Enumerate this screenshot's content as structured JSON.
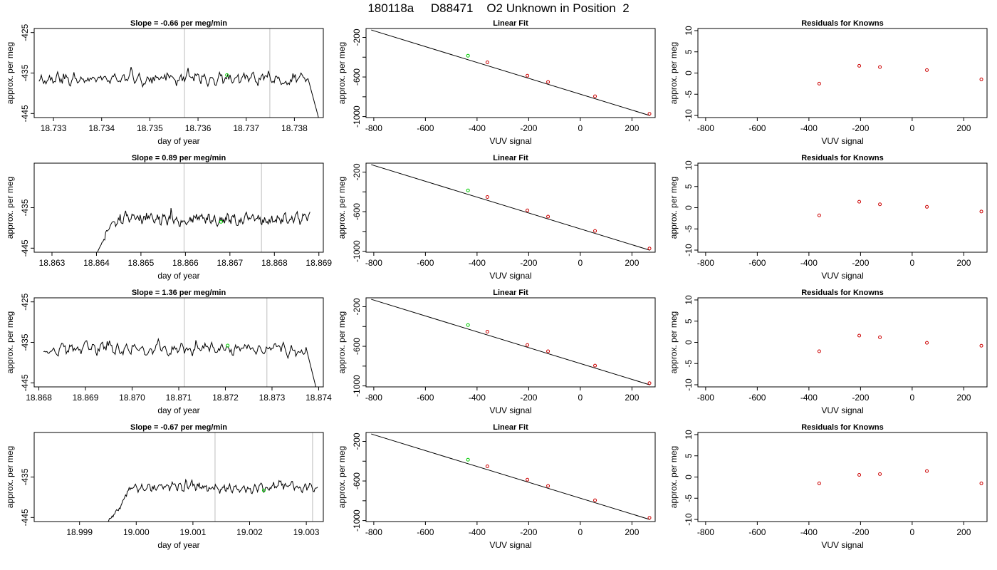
{
  "page_title": "180118a     D88471    O2 Unknown in Position  2",
  "colors": {
    "trace": "#000000",
    "grid_marker": "#c8c8c8",
    "known_point": "#cc0000",
    "unknown_point": "#00cc00",
    "fit_line": "#000000"
  },
  "chart_data": [
    {
      "type": "line",
      "row": 0,
      "col": 0,
      "title": "Slope =  -0.66  per meg/min",
      "xlabel": "day of year",
      "ylabel": "approx. per meg",
      "xlim": [
        18.7326,
        18.7386
      ],
      "ylim": [
        -446,
        -424
      ],
      "xticks": [
        18.733,
        18.734,
        18.735,
        18.736,
        18.737,
        18.738
      ],
      "xtick_labels": [
        "18.733",
        "18.734",
        "18.735",
        "18.736",
        "18.737",
        "18.738"
      ],
      "yticks": [
        -445,
        -435,
        -425
      ],
      "ytick_labels": [
        "-445",
        "-435",
        "-425"
      ],
      "x_range": [
        18.7327,
        18.7385
      ],
      "vlines": [
        18.73572,
        18.73749
      ],
      "marker_point": [
        18.7366,
        -435.5
      ],
      "trace": {
        "seed": 11,
        "start_frac": 0.0,
        "mean": -436.5,
        "amp": 2.4,
        "rise": 0,
        "tail_drop": [
          -437,
          -446
        ],
        "head_start": -436
      }
    },
    {
      "type": "line",
      "row": 0,
      "col": 1,
      "title": "Linear Fit",
      "xlabel": "VUV signal",
      "ylabel": "approx. per meg",
      "xlim": [
        -830,
        290
      ],
      "ylim": [
        -1010,
        -110
      ],
      "xticks": [
        -800,
        -600,
        -400,
        -200,
        0,
        200
      ],
      "xtick_labels": [
        "-800",
        "-600",
        "-400",
        "-200",
        "0",
        "200"
      ],
      "yticks": [
        -1000,
        -800,
        -600,
        -400,
        -200
      ],
      "ytick_labels": [
        "-1000",
        "",
        "-600",
        "",
        "-200"
      ],
      "fit_line": {
        "x": [
          -810,
          270
        ],
        "y": [
          -125,
          -990
        ]
      },
      "known_points": {
        "x": [
          -360,
          -205,
          -125,
          57,
          268
        ],
        "y": [
          -452,
          -587,
          -650,
          -795,
          -972
        ]
      },
      "unknown_point": {
        "x": -435,
        "y": -385
      }
    },
    {
      "type": "scatter",
      "row": 0,
      "col": 2,
      "title": "Residuals for Knowns",
      "xlabel": "VUV signal",
      "ylabel": "approx. per meg",
      "xlim": [
        -830,
        290
      ],
      "ylim": [
        -10.5,
        10.5
      ],
      "xticks": [
        -800,
        -600,
        -400,
        -200,
        0,
        200
      ],
      "xtick_labels": [
        "-800",
        "-600",
        "-400",
        "-200",
        "0",
        "200"
      ],
      "yticks": [
        -10,
        -5,
        0,
        5,
        10
      ],
      "ytick_labels": [
        "-10",
        "-5",
        "0",
        "5",
        "10"
      ],
      "points": {
        "x": [
          -360,
          -205,
          -125,
          57,
          268
        ],
        "y": [
          -2.5,
          1.7,
          1.4,
          0.7,
          -1.5
        ]
      }
    },
    {
      "type": "line",
      "row": 1,
      "col": 0,
      "title": "Slope =  0.89  per meg/min",
      "xlabel": "day of year",
      "ylabel": "approx. per meg",
      "xlim": [
        18.8626,
        18.8691
      ],
      "ylim": [
        -446,
        -424
      ],
      "xticks": [
        18.863,
        18.864,
        18.865,
        18.866,
        18.867,
        18.868,
        18.869
      ],
      "xtick_labels": [
        "18.863",
        "18.864",
        "18.865",
        "18.866",
        "18.867",
        "18.868",
        "18.869"
      ],
      "yticks": [
        -445,
        -435
      ],
      "ytick_labels": [
        "-445",
        "-435"
      ],
      "x_range": [
        18.8639,
        18.8688
      ],
      "vlines": [
        18.86597,
        18.86771
      ],
      "marker_point": [
        18.8668,
        -438.5
      ],
      "trace": {
        "seed": 23,
        "start_frac": 0.0,
        "mean": -437.8,
        "amp": 2.2,
        "rise": 0,
        "tail_drop": null,
        "head_start": -447
      }
    },
    {
      "type": "line",
      "row": 1,
      "col": 1,
      "title": "Linear Fit",
      "xlabel": "VUV signal",
      "ylabel": "approx. per meg",
      "xlim": [
        -830,
        290
      ],
      "ylim": [
        -1010,
        -110
      ],
      "xticks": [
        -800,
        -600,
        -400,
        -200,
        0,
        200
      ],
      "xtick_labels": [
        "-800",
        "-600",
        "-400",
        "-200",
        "0",
        "200"
      ],
      "yticks": [
        -1000,
        -800,
        -600,
        -400,
        -200
      ],
      "ytick_labels": [
        "-1000",
        "",
        "-600",
        "",
        "-200"
      ],
      "fit_line": {
        "x": [
          -810,
          270
        ],
        "y": [
          -125,
          -990
        ]
      },
      "known_points": {
        "x": [
          -360,
          -205,
          -125,
          57,
          268
        ],
        "y": [
          -452,
          -587,
          -650,
          -795,
          -972
        ]
      },
      "unknown_point": {
        "x": -435,
        "y": -385
      }
    },
    {
      "type": "scatter",
      "row": 1,
      "col": 2,
      "title": "Residuals for Knowns",
      "xlabel": "VUV signal",
      "ylabel": "approx. per meg",
      "xlim": [
        -830,
        290
      ],
      "ylim": [
        -10.5,
        10.5
      ],
      "xticks": [
        -800,
        -600,
        -400,
        -200,
        0,
        200
      ],
      "xtick_labels": [
        "-800",
        "-600",
        "-400",
        "-200",
        "0",
        "200"
      ],
      "yticks": [
        -10,
        -5,
        0,
        5,
        10
      ],
      "ytick_labels": [
        "-10",
        "-5",
        "0",
        "5",
        "10"
      ],
      "points": {
        "x": [
          -360,
          -205,
          -125,
          57,
          268
        ],
        "y": [
          -1.8,
          1.4,
          0.8,
          0.2,
          -0.9
        ]
      }
    },
    {
      "type": "line",
      "row": 2,
      "col": 0,
      "title": "Slope =  1.36  per meg/min",
      "xlabel": "day of year",
      "ylabel": "approx. per meg",
      "xlim": [
        18.8679,
        18.8741
      ],
      "ylim": [
        -446,
        -424
      ],
      "xticks": [
        18.868,
        18.869,
        18.87,
        18.871,
        18.872,
        18.873,
        18.874
      ],
      "xtick_labels": [
        "18.868",
        "18.869",
        "18.870",
        "18.871",
        "18.872",
        "18.873",
        "18.874"
      ],
      "yticks": [
        -445,
        -435,
        -425
      ],
      "ytick_labels": [
        "-445",
        "-435",
        "-425"
      ],
      "x_range": [
        18.8681,
        18.87395
      ],
      "vlines": [
        18.87112,
        18.87289
      ],
      "marker_point": [
        18.87205,
        -435.8
      ],
      "trace": {
        "seed": 37,
        "start_frac": 0.0,
        "mean": -436.8,
        "amp": 2.3,
        "rise": 0,
        "tail_drop": [
          -437,
          -446.5
        ],
        "head_start": -437
      }
    },
    {
      "type": "line",
      "row": 2,
      "col": 1,
      "title": "Linear Fit",
      "xlabel": "VUV signal",
      "ylabel": "approx. per meg",
      "xlim": [
        -830,
        290
      ],
      "ylim": [
        -1010,
        -110
      ],
      "xticks": [
        -800,
        -600,
        -400,
        -200,
        0,
        200
      ],
      "xtick_labels": [
        "-800",
        "-600",
        "-400",
        "-200",
        "0",
        "200"
      ],
      "yticks": [
        -1000,
        -800,
        -600,
        -400,
        -200
      ],
      "ytick_labels": [
        "-1000",
        "",
        "-600",
        "",
        "-200"
      ],
      "fit_line": {
        "x": [
          -810,
          270
        ],
        "y": [
          -125,
          -990
        ]
      },
      "known_points": {
        "x": [
          -360,
          -205,
          -125,
          57,
          268
        ],
        "y": [
          -452,
          -587,
          -650,
          -795,
          -972
        ]
      },
      "unknown_point": {
        "x": -435,
        "y": -385
      }
    },
    {
      "type": "scatter",
      "row": 2,
      "col": 2,
      "title": "Residuals for Knowns",
      "xlabel": "VUV signal",
      "ylabel": "approx. per meg",
      "xlim": [
        -830,
        290
      ],
      "ylim": [
        -10.5,
        10.5
      ],
      "xticks": [
        -800,
        -600,
        -400,
        -200,
        0,
        200
      ],
      "xtick_labels": [
        "-800",
        "-600",
        "-400",
        "-200",
        "0",
        "200"
      ],
      "yticks": [
        -10,
        -5,
        0,
        5,
        10
      ],
      "ytick_labels": [
        "-10",
        "-5",
        "0",
        "5",
        "10"
      ],
      "points": {
        "x": [
          -360,
          -205,
          -125,
          57,
          268
        ],
        "y": [
          -2.1,
          1.6,
          1.2,
          -0.1,
          -0.8
        ]
      }
    },
    {
      "type": "line",
      "row": 3,
      "col": 0,
      "title": "Slope =  -0.67  per meg/min",
      "xlabel": "day of year",
      "ylabel": "approx. per meg",
      "xlim": [
        18.9982,
        19.0033
      ],
      "ylim": [
        -446,
        -424
      ],
      "xticks": [
        18.999,
        19.0,
        19.001,
        19.002,
        19.003
      ],
      "xtick_labels": [
        "18.999",
        "19.000",
        "19.001",
        "19.002",
        "19.003"
      ],
      "yticks": [
        -445,
        -435
      ],
      "ytick_labels": [
        "-445",
        "-435"
      ],
      "x_range": [
        18.9994,
        19.0032
      ],
      "vlines": [
        19.00139,
        19.00311
      ],
      "marker_point": [
        19.00225,
        -438.3
      ],
      "trace": {
        "seed": 53,
        "start_frac": 0.0,
        "mean": -437.5,
        "amp": 1.8,
        "rise": 1,
        "tail_drop": null,
        "head_start": -447
      }
    },
    {
      "type": "line",
      "row": 3,
      "col": 1,
      "title": "Linear Fit",
      "xlabel": "VUV signal",
      "ylabel": "approx. per meg",
      "xlim": [
        -830,
        290
      ],
      "ylim": [
        -1010,
        -110
      ],
      "xticks": [
        -800,
        -600,
        -400,
        -200,
        0,
        200
      ],
      "xtick_labels": [
        "-800",
        "-600",
        "-400",
        "-200",
        "0",
        "200"
      ],
      "yticks": [
        -1000,
        -800,
        -600,
        -400,
        -200
      ],
      "ytick_labels": [
        "-1000",
        "",
        "-600",
        "",
        "-200"
      ],
      "fit_line": {
        "x": [
          -810,
          270
        ],
        "y": [
          -125,
          -990
        ]
      },
      "known_points": {
        "x": [
          -360,
          -205,
          -125,
          57,
          268
        ],
        "y": [
          -452,
          -587,
          -650,
          -795,
          -972
        ]
      },
      "unknown_point": {
        "x": -435,
        "y": -385
      }
    },
    {
      "type": "scatter",
      "row": 3,
      "col": 2,
      "title": "Residuals for Knowns",
      "xlabel": "VUV signal",
      "ylabel": "approx. per meg",
      "xlim": [
        -830,
        290
      ],
      "ylim": [
        -10.5,
        10.5
      ],
      "xticks": [
        -800,
        -600,
        -400,
        -200,
        0,
        200
      ],
      "xtick_labels": [
        "-800",
        "-600",
        "-400",
        "-200",
        "0",
        "200"
      ],
      "yticks": [
        -10,
        -5,
        0,
        5,
        10
      ],
      "ytick_labels": [
        "-10",
        "-5",
        "0",
        "5",
        "10"
      ],
      "points": {
        "x": [
          -360,
          -205,
          -125,
          57,
          268
        ],
        "y": [
          -1.5,
          0.5,
          0.7,
          1.4,
          -1.5
        ]
      }
    }
  ]
}
